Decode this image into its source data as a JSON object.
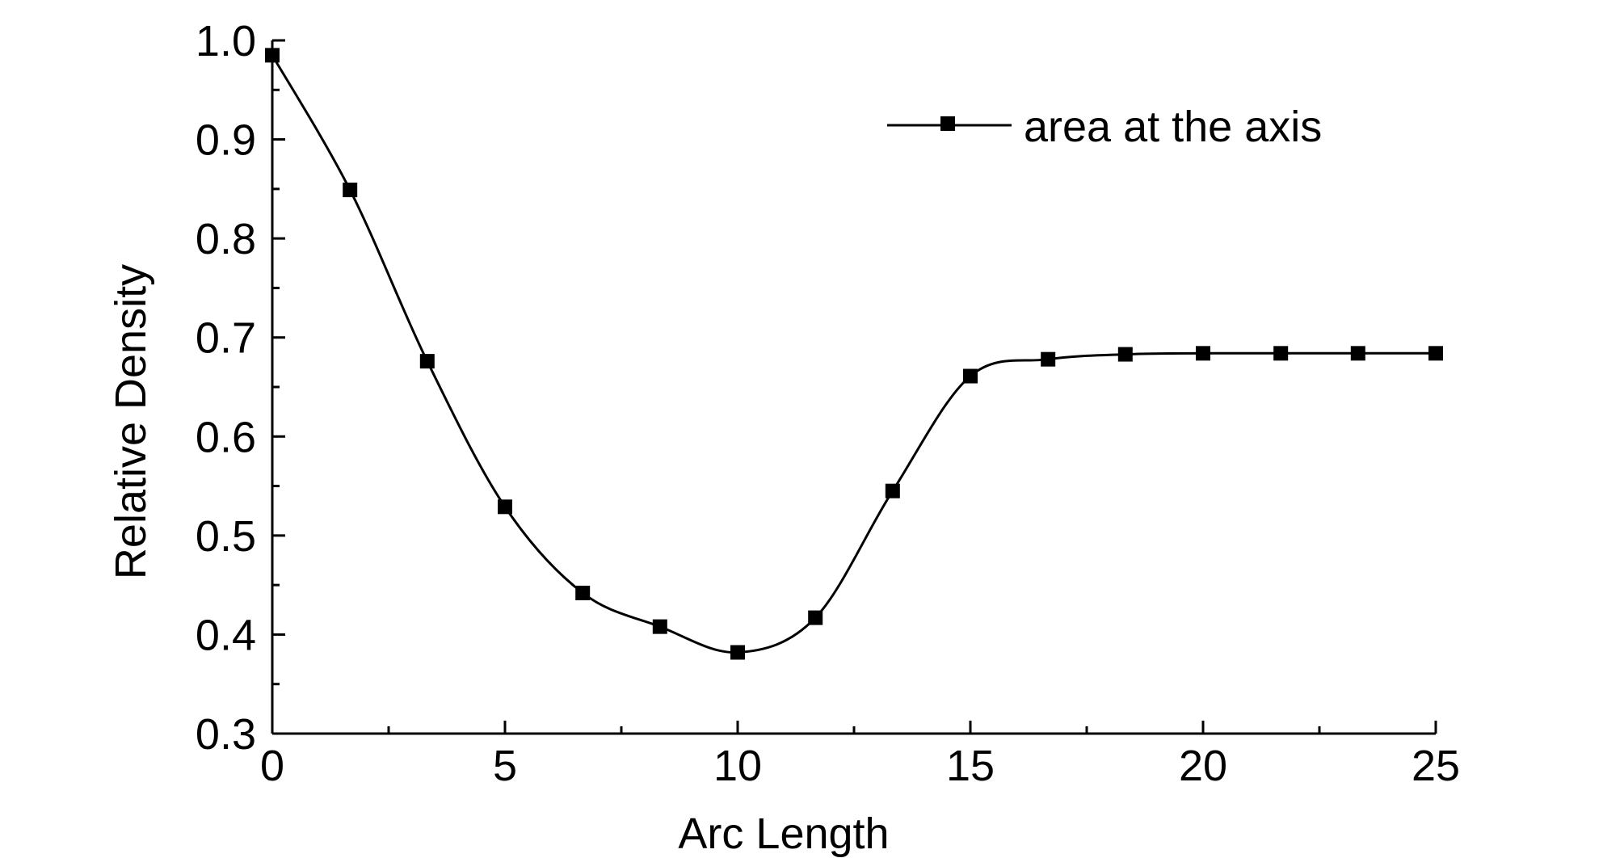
{
  "chart_data": {
    "type": "line",
    "title": "",
    "xlabel": "Arc Length",
    "ylabel": "Relative Density",
    "xlim": [
      0,
      25
    ],
    "ylim": [
      0.3,
      1.0
    ],
    "x_ticks": [
      "0",
      "5",
      "10",
      "15",
      "20",
      "25"
    ],
    "y_ticks": [
      "0.3",
      "0.4",
      "0.5",
      "0.6",
      "0.7",
      "0.8",
      "0.9",
      "1.0"
    ],
    "grid": false,
    "legend_position": "top-right",
    "series": [
      {
        "name": "area at the axis",
        "color": "#000000",
        "marker": "square",
        "x": [
          0,
          1.67,
          3.33,
          5.0,
          6.67,
          8.33,
          10.0,
          11.67,
          13.33,
          15.0,
          16.67,
          18.33,
          20.0,
          21.67,
          23.33,
          25.0
        ],
        "y": [
          0.985,
          0.849,
          0.676,
          0.529,
          0.442,
          0.408,
          0.382,
          0.417,
          0.545,
          0.661,
          0.678,
          0.683,
          0.684,
          0.684,
          0.684,
          0.684
        ]
      }
    ]
  }
}
